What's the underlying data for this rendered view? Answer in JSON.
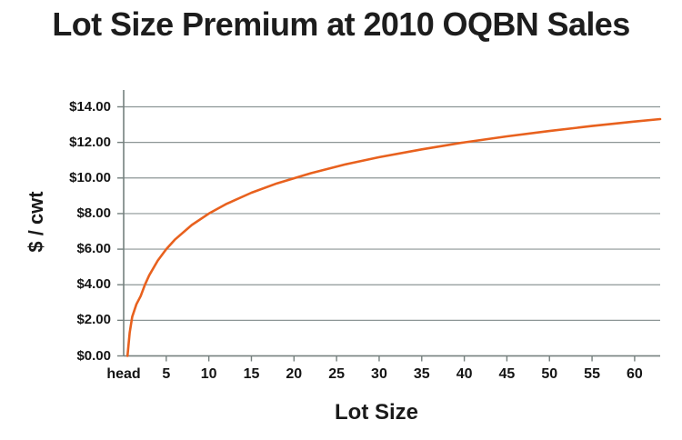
{
  "chart_data": {
    "type": "line",
    "title": "Lot Size Premium at 2010 OQBN Sales",
    "xlabel": "Lot Size",
    "ylabel": "$ / cwt",
    "xlim": [
      0,
      63
    ],
    "ylim": [
      0,
      14
    ],
    "grid": "horizontal",
    "legend": "none",
    "colors": {
      "line": "#e8611e",
      "grid": "#8d9696",
      "axis": "#75807e",
      "text": "#1a1a1a",
      "background": "#ffffff"
    },
    "y_ticks": [
      {
        "label": "$0.00",
        "y": 0
      },
      {
        "label": "$2.00",
        "y": 2
      },
      {
        "label": "$4.00",
        "y": 4
      },
      {
        "label": "$6.00",
        "y": 6
      },
      {
        "label": "$8.00",
        "y": 8
      },
      {
        "label": "$10.00",
        "y": 10
      },
      {
        "label": "$12.00",
        "y": 12
      },
      {
        "label": "$14.00",
        "y": 14
      }
    ],
    "x_ticks": [
      {
        "label": "head",
        "x": 0
      },
      {
        "label": "5",
        "x": 5
      },
      {
        "label": "10",
        "x": 10
      },
      {
        "label": "15",
        "x": 15
      },
      {
        "label": "20",
        "x": 20
      },
      {
        "label": "25",
        "x": 25
      },
      {
        "label": "30",
        "x": 30
      },
      {
        "label": "35",
        "x": 35
      },
      {
        "label": "40",
        "x": 40
      },
      {
        "label": "45",
        "x": 45
      },
      {
        "label": "50",
        "x": 50
      },
      {
        "label": "55",
        "x": 55
      },
      {
        "label": "60",
        "x": 60
      }
    ],
    "series": [
      {
        "name": "Lot Size Premium",
        "color": "#e8611e",
        "points": [
          [
            0.45,
            0.0
          ],
          [
            0.7,
            1.3
          ],
          [
            1,
            2.2
          ],
          [
            1.5,
            2.9
          ],
          [
            2,
            3.36
          ],
          [
            2.5,
            4.0
          ],
          [
            3,
            4.53
          ],
          [
            4,
            5.36
          ],
          [
            5,
            6.0
          ],
          [
            6,
            6.53
          ],
          [
            8,
            7.36
          ],
          [
            10,
            8.0
          ],
          [
            12,
            8.53
          ],
          [
            15,
            9.17
          ],
          [
            18,
            9.7
          ],
          [
            22,
            10.27
          ],
          [
            26,
            10.76
          ],
          [
            30,
            11.17
          ],
          [
            35,
            11.61
          ],
          [
            40,
            12.0
          ],
          [
            45,
            12.34
          ],
          [
            50,
            12.64
          ],
          [
            55,
            12.92
          ],
          [
            60,
            13.17
          ],
          [
            63,
            13.31
          ]
        ]
      }
    ]
  }
}
